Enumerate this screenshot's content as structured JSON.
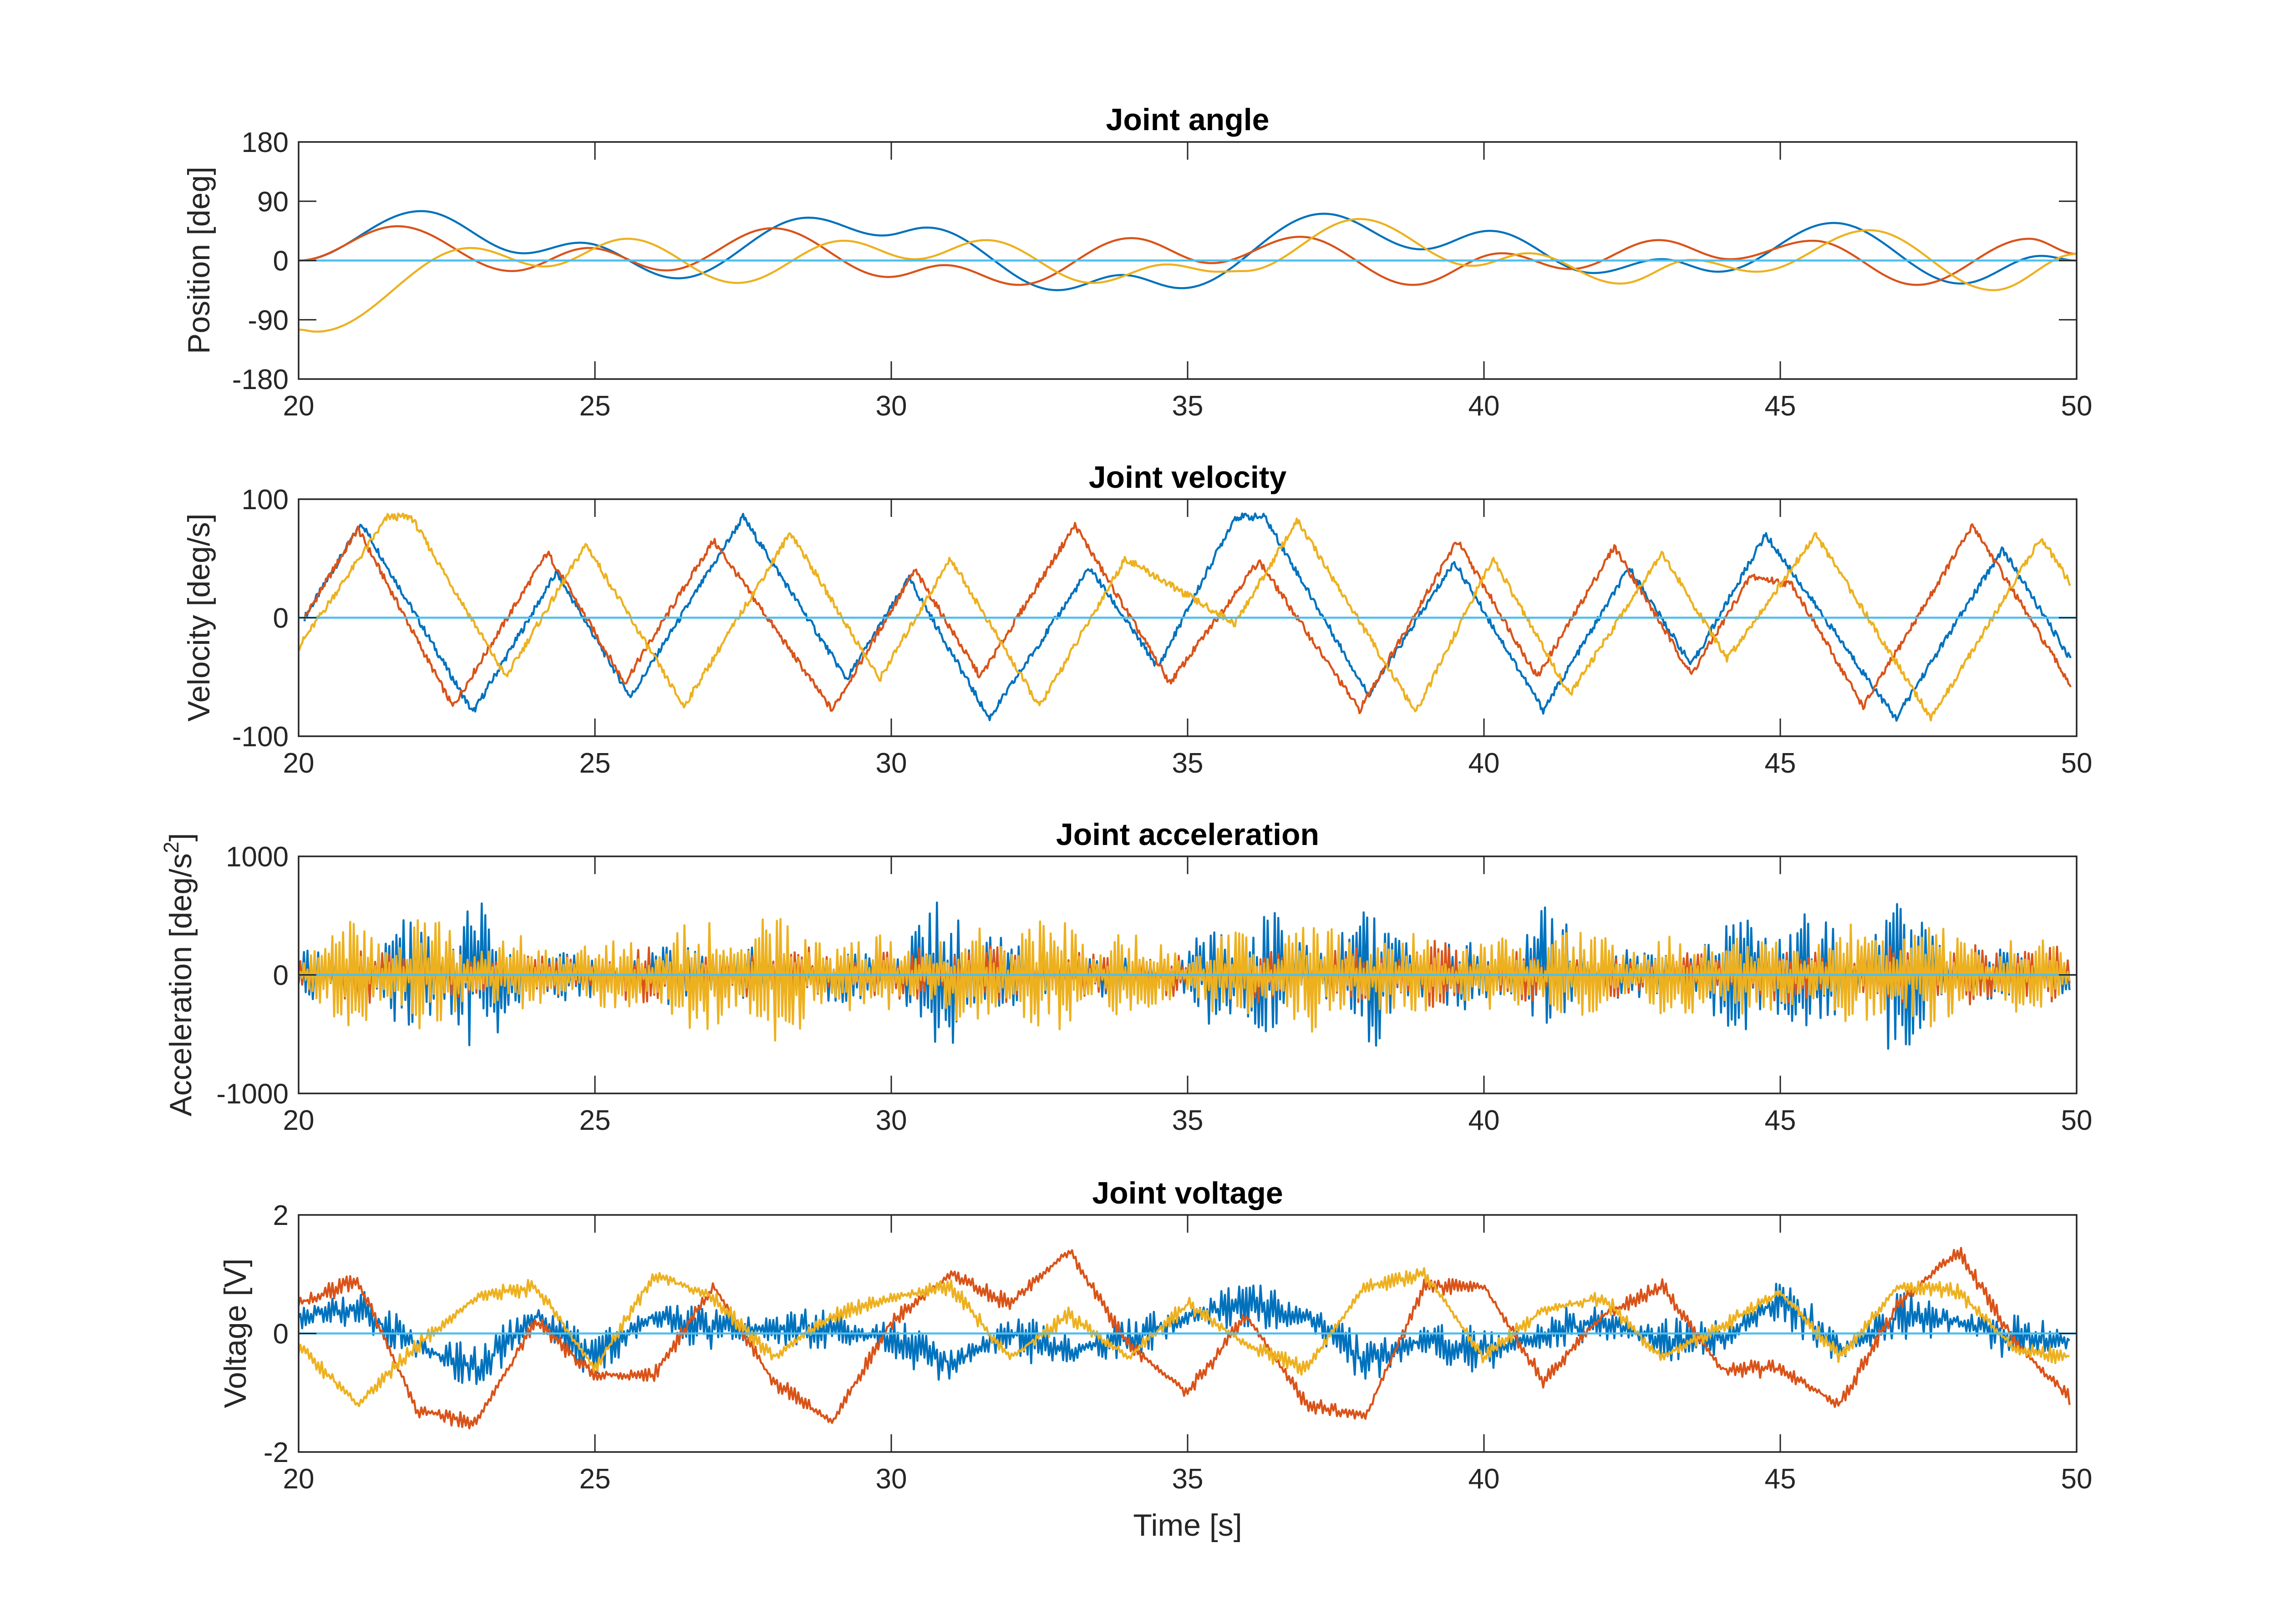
{
  "colors": {
    "series1": "#0072BD",
    "series2": "#D95319",
    "series3": "#EDB120",
    "zero_line": "#4DBEEE",
    "axes": "#262626"
  },
  "chart_data": [
    {
      "type": "line",
      "title": "Joint angle",
      "ylabel": "Position [deg]",
      "xlabel": "",
      "xlim": [
        20,
        50
      ],
      "ylim": [
        -180,
        180
      ],
      "xticks": [
        20,
        25,
        30,
        35,
        40,
        45,
        50
      ],
      "yticks": [
        -180,
        -90,
        0,
        90,
        180
      ],
      "interp": "smooth",
      "series": [
        {
          "color": "#0072BD",
          "points": [
            [
              20,
              0
            ],
            [
              22.07,
              75
            ],
            [
              23.8,
              11
            ],
            [
              24.75,
              27
            ],
            [
              26.4,
              -27
            ],
            [
              28.6,
              65
            ],
            [
              29.85,
              38
            ],
            [
              30.6,
              50
            ],
            [
              32.8,
              -45
            ],
            [
              33.9,
              -22
            ],
            [
              34.9,
              -42
            ],
            [
              37.3,
              71
            ],
            [
              38.95,
              17
            ],
            [
              40.1,
              45
            ],
            [
              41.85,
              -19
            ],
            [
              43,
              2
            ],
            [
              43.95,
              -17
            ],
            [
              45.9,
              57
            ],
            [
              48.05,
              -35
            ],
            [
              49.4,
              7
            ],
            [
              50,
              0
            ]
          ]
        },
        {
          "color": "#D95319",
          "points": [
            [
              20,
              0
            ],
            [
              21.67,
              52
            ],
            [
              23.6,
              -16
            ],
            [
              24.9,
              19
            ],
            [
              26.2,
              -15
            ],
            [
              28,
              49
            ],
            [
              29.95,
              -25
            ],
            [
              30.9,
              -7
            ],
            [
              32.15,
              -37
            ],
            [
              34.05,
              34
            ],
            [
              35.4,
              -4
            ],
            [
              36.9,
              36
            ],
            [
              38.8,
              -37
            ],
            [
              40.3,
              11
            ],
            [
              41.45,
              -13
            ],
            [
              42.95,
              31
            ],
            [
              44.15,
              2
            ],
            [
              45.55,
              30
            ],
            [
              47.3,
              -37
            ],
            [
              49.2,
              33
            ],
            [
              50,
              10
            ]
          ]
        },
        {
          "color": "#EDB120",
          "points": [
            [
              20,
              -105
            ],
            [
              20.3,
              -108
            ],
            [
              22.9,
              19
            ],
            [
              24.15,
              -9
            ],
            [
              25.55,
              33
            ],
            [
              27.4,
              -34
            ],
            [
              29.2,
              30
            ],
            [
              30.4,
              2
            ],
            [
              31.6,
              31
            ],
            [
              33.4,
              -34
            ],
            [
              34.65,
              -6
            ],
            [
              35.5,
              -17
            ],
            [
              35.95,
              -16
            ],
            [
              37.9,
              63
            ],
            [
              39.8,
              -8
            ],
            [
              40.75,
              11
            ],
            [
              42.3,
              -35
            ],
            [
              43.5,
              1
            ],
            [
              44.6,
              -17
            ],
            [
              46.5,
              46
            ],
            [
              48.6,
              -45
            ],
            [
              50,
              10
            ]
          ]
        }
      ],
      "reference_line": 0
    },
    {
      "type": "line",
      "title": "Joint velocity",
      "ylabel": "Velocity [deg/s]",
      "xlabel": "",
      "xlim": [
        20,
        50
      ],
      "ylim": [
        -100,
        100
      ],
      "xticks": [
        20,
        25,
        30,
        35,
        40,
        45,
        50
      ],
      "yticks": [
        -100,
        0,
        100
      ],
      "interp": "linear",
      "noise": 3,
      "series": [
        {
          "color": "#0072BD",
          "points": [
            [
              20.1,
              0
            ],
            [
              21.06,
              80
            ],
            [
              22.94,
              -80
            ],
            [
              24.35,
              38
            ],
            [
              25.6,
              -67
            ],
            [
              27.5,
              85
            ],
            [
              29.25,
              -52
            ],
            [
              30.3,
              33
            ],
            [
              31.65,
              -85
            ],
            [
              33.35,
              42
            ],
            [
              34.5,
              -42
            ],
            [
              35.8,
              85
            ],
            [
              36.3,
              85
            ],
            [
              38.05,
              -65
            ],
            [
              39.5,
              47
            ],
            [
              41,
              -78
            ],
            [
              42.45,
              42
            ],
            [
              43.5,
              -40
            ],
            [
              44.75,
              70
            ],
            [
              46.95,
              -85
            ],
            [
              48.75,
              58
            ],
            [
              49.9,
              -35
            ]
          ]
        },
        {
          "color": "#D95319",
          "points": [
            [
              20.1,
              0
            ],
            [
              21,
              75
            ],
            [
              22.6,
              -75
            ],
            [
              24.2,
              55
            ],
            [
              25.5,
              -55
            ],
            [
              27,
              65
            ],
            [
              29,
              -78
            ],
            [
              30.4,
              40
            ],
            [
              31.5,
              -50
            ],
            [
              33.1,
              78
            ],
            [
              34.7,
              -55
            ],
            [
              36.2,
              48
            ],
            [
              37.9,
              -78
            ],
            [
              39.55,
              65
            ],
            [
              40.9,
              -50
            ],
            [
              42.2,
              60
            ],
            [
              43.5,
              -48
            ],
            [
              44.5,
              35
            ],
            [
              45.2,
              28
            ],
            [
              46.4,
              -75
            ],
            [
              48.25,
              78
            ],
            [
              49.9,
              -57
            ]
          ]
        },
        {
          "color": "#EDB120",
          "points": [
            [
              20,
              -25
            ],
            [
              21.5,
              85
            ],
            [
              21.9,
              85
            ],
            [
              23.5,
              -50
            ],
            [
              24.85,
              62
            ],
            [
              26.5,
              -75
            ],
            [
              28.3,
              72
            ],
            [
              29.8,
              -52
            ],
            [
              31,
              50
            ],
            [
              32.5,
              -75
            ],
            [
              33.95,
              50
            ],
            [
              35.8,
              -5
            ],
            [
              36.85,
              82
            ],
            [
              38.85,
              -80
            ],
            [
              40.15,
              50
            ],
            [
              41.45,
              -65
            ],
            [
              43,
              55
            ],
            [
              44.1,
              -35
            ],
            [
              45.6,
              70
            ],
            [
              47.55,
              -85
            ],
            [
              49.4,
              68
            ],
            [
              49.9,
              28
            ]
          ]
        }
      ],
      "reference_line": 0
    },
    {
      "type": "line",
      "title": "Joint acceleration",
      "ylabel_main": "Acceleration [deg/s",
      "ylabel_sup": "2",
      "ylabel_end": "]",
      "xlabel": "",
      "xlim": [
        20,
        50
      ],
      "ylim": [
        -1000,
        1000
      ],
      "xticks": [
        20,
        25,
        30,
        35,
        40,
        45,
        50
      ],
      "yticks": [
        -1000,
        0,
        1000
      ],
      "interp": "oscillation",
      "amplitude_times": [
        20,
        21,
        22,
        23,
        24,
        25,
        26,
        27,
        28,
        29,
        30,
        31,
        32,
        33,
        34,
        35,
        36,
        37,
        38,
        39,
        40,
        41,
        42,
        43,
        44,
        45,
        46,
        47,
        48,
        49,
        50
      ],
      "series": [
        {
          "color": "#0072BD",
          "amplitude": [
            200,
            350,
            500,
            700,
            250,
            200,
            250,
            300,
            200,
            250,
            200,
            800,
            300,
            200,
            250,
            250,
            800,
            300,
            700,
            400,
            250,
            600,
            300,
            200,
            400,
            700,
            400,
            800,
            300,
            250,
            200
          ]
        },
        {
          "color": "#D95319",
          "amplitude": [
            150,
            300,
            200,
            200,
            200,
            200,
            250,
            200,
            300,
            200,
            250,
            300,
            250,
            200,
            200,
            200,
            250,
            200,
            250,
            300,
            250,
            250,
            200,
            250,
            200,
            250,
            250,
            300,
            250,
            300,
            250
          ]
        },
        {
          "color": "#EDB120",
          "amplitude": [
            200,
            500,
            500,
            400,
            350,
            300,
            400,
            500,
            600,
            400,
            350,
            400,
            500,
            500,
            400,
            300,
            400,
            500,
            400,
            350,
            300,
            400,
            400,
            350,
            400,
            350,
            450,
            500,
            400,
            350,
            300
          ]
        }
      ],
      "reference_line": 0
    },
    {
      "type": "line",
      "title": "Joint voltage",
      "ylabel": "Voltage [V]",
      "xlabel": "Time [s]",
      "xlim": [
        20,
        50
      ],
      "ylim": [
        -2,
        2
      ],
      "xticks": [
        20,
        25,
        30,
        35,
        40,
        45,
        50
      ],
      "yticks": [
        -2,
        0,
        2
      ],
      "interp": "baseline+oscillation",
      "times": [
        20,
        21,
        22,
        23,
        24,
        25,
        26,
        27,
        28,
        29,
        30,
        31,
        32,
        33,
        34,
        35,
        36,
        37,
        38,
        39,
        40,
        41,
        42,
        43,
        44,
        45,
        46,
        47,
        48,
        49,
        50
      ],
      "series": [
        {
          "color": "#0072BD",
          "noise_amplitude": 0.4,
          "values": [
            0.3,
            0.4,
            -0.2,
            -0.6,
            0.3,
            -0.4,
            0.3,
            0.1,
            0.1,
            0.1,
            -0.1,
            -0.5,
            0.0,
            -0.3,
            -0.1,
            0.3,
            0.5,
            0.3,
            -0.5,
            -0.1,
            -0.3,
            0.0,
            0.2,
            -0.1,
            -0.1,
            0.6,
            -0.3,
            0.3,
            0.2,
            -0.1,
            -0.1
          ]
        },
        {
          "color": "#D95319",
          "noise_amplitude": 0.15,
          "values": [
            0.5,
            0.9,
            -1.3,
            -1.5,
            0.2,
            -0.7,
            -0.7,
            0.8,
            -0.8,
            -1.5,
            0.2,
            1.0,
            0.5,
            1.4,
            -0.2,
            -1.0,
            0.3,
            -1.2,
            -1.4,
            0.8,
            0.8,
            -0.8,
            0.3,
            0.8,
            -0.6,
            -0.6,
            -1.2,
            0.5,
            1.4,
            -0.2,
            -1.2
          ]
        },
        {
          "color": "#EDB120",
          "noise_amplitude": 0.15,
          "values": [
            -0.2,
            -1.2,
            -0.2,
            0.6,
            0.8,
            -0.6,
            1.0,
            0.6,
            -0.4,
            0.3,
            0.6,
            0.8,
            -0.4,
            0.3,
            -0.4,
            0.5,
            -0.2,
            -0.6,
            0.8,
            1.0,
            -0.4,
            0.4,
            0.6,
            -0.4,
            0.1,
            0.7,
            -0.4,
            0.8,
            0.7,
            -0.3,
            -0.4
          ]
        }
      ],
      "reference_line": 0
    }
  ]
}
